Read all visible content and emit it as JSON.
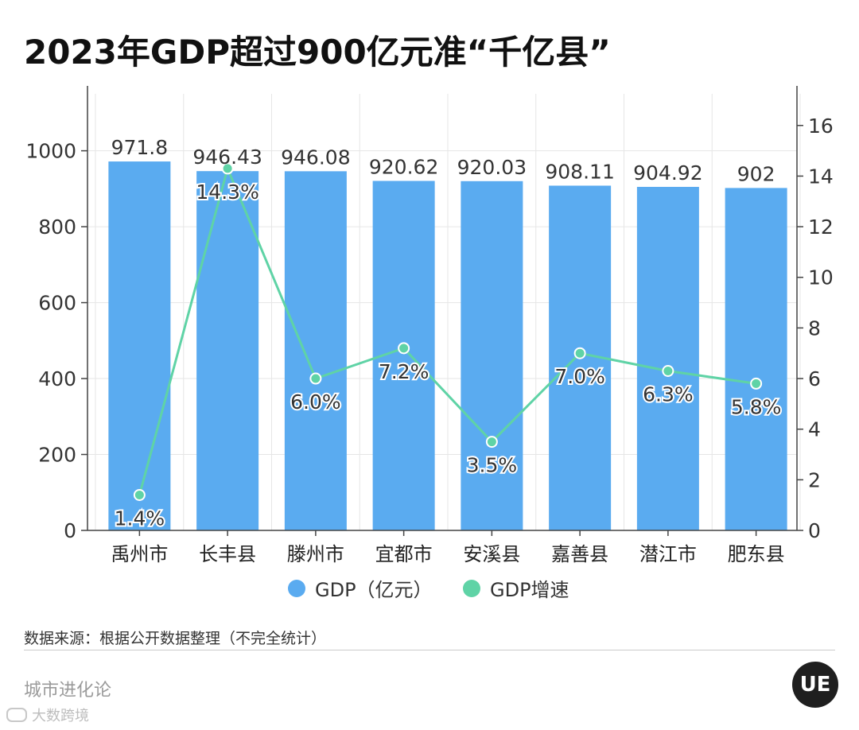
{
  "title": "2023年GDP超过900亿元准“千亿县”",
  "chart_data": {
    "type": "bar",
    "categories": [
      "禹州市",
      "长丰县",
      "滕州市",
      "宜都市",
      "安溪县",
      "嘉善县",
      "潜江市",
      "肥东县"
    ],
    "series": [
      {
        "name": "GDP（亿元）",
        "type": "bar",
        "axis": "left",
        "color": "#5aabf0",
        "values": [
          971.8,
          946.43,
          946.08,
          920.62,
          920.03,
          908.11,
          904.92,
          902
        ],
        "labels": [
          "971.8",
          "946.43",
          "946.08",
          "920.62",
          "920.03",
          "908.11",
          "904.92",
          "902"
        ]
      },
      {
        "name": "GDP增速",
        "type": "line",
        "axis": "right",
        "color": "#5fd3a6",
        "values": [
          1.4,
          14.3,
          6.0,
          7.2,
          3.5,
          7.0,
          6.3,
          5.8
        ],
        "labels": [
          "1.4%",
          "14.3%",
          "6.0%",
          "7.2%",
          "3.5%",
          "7.0%",
          "6.3%",
          "5.8%"
        ]
      }
    ],
    "y_left": {
      "min": 0,
      "max": 1150,
      "ticks": [
        0,
        200,
        400,
        600,
        800,
        1000
      ]
    },
    "y_right": {
      "min": 0,
      "max": 17.25,
      "ticks": [
        0,
        2,
        4,
        6,
        8,
        10,
        12,
        14,
        16
      ]
    },
    "legend": [
      "GDP（亿元）",
      "GDP增速"
    ],
    "grid": true
  },
  "source": "数据来源：根据公开数据整理（不完全统计）",
  "brand": "城市进化论",
  "footer_watermark": "大数跨境",
  "logo_text": "UE",
  "colors": {
    "bar": "#5aabf0",
    "line": "#5fd3a6",
    "grid": "#e6e6e6",
    "axis": "#444444"
  }
}
